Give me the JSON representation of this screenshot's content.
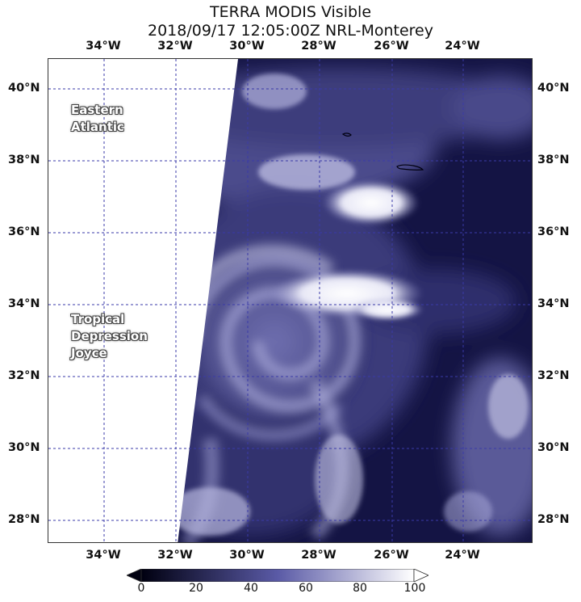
{
  "title": {
    "line1": "TERRA MODIS Visible",
    "line2": "2018/09/17 12:05:00Z NRL-Monterey"
  },
  "map": {
    "lon_labels_top": [
      "34°W",
      "32°W",
      "30°W",
      "28°W",
      "26°W",
      "24°W"
    ],
    "lon_labels_bottom": [
      "34°W",
      "32°W",
      "30°W",
      "28°W",
      "26°W",
      "24°W"
    ],
    "lat_labels_left": [
      "40°N",
      "38°N",
      "36°N",
      "34°N",
      "32°N",
      "30°N",
      "28°N"
    ],
    "lat_labels_right": [
      "40°N",
      "38°N",
      "36°N",
      "34°N",
      "32°N",
      "30°N",
      "28°N"
    ],
    "region_labels": {
      "eastern_atlantic": [
        "Eastern",
        "Atlantic"
      ],
      "tropical_depression": [
        "Tropical",
        "Depression",
        "Joyce"
      ]
    },
    "colors": {
      "ocean_dark": "#141444",
      "cloud_bright": "#ffffff",
      "no_data": "#ffffff",
      "gridline": "#3a3aa8"
    }
  },
  "colorbar": {
    "ticks": [
      "0",
      "20",
      "40",
      "60",
      "80",
      "100"
    ],
    "min_color": "#000010",
    "max_color": "#ffffff"
  }
}
